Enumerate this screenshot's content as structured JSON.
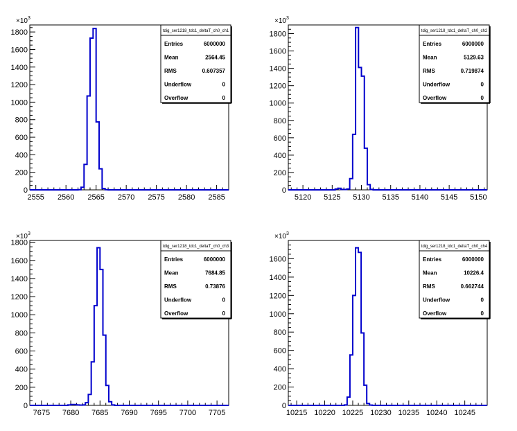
{
  "chart_data": [
    {
      "type": "histogram",
      "stats": {
        "title": "tdig_ser1218_tdc1_deltaT_ch0_ch1",
        "rows": [
          {
            "label": "Entries",
            "value": "6000000"
          },
          {
            "label": "Mean",
            "value": "2564.45"
          },
          {
            "label": "RMS",
            "value": "0.607357"
          },
          {
            "label": "Underflow",
            "value": "0"
          },
          {
            "label": "Overflow",
            "value": "0"
          }
        ]
      },
      "exponent": "3",
      "xlim": [
        2554,
        2587
      ],
      "ylim": [
        0,
        1880
      ],
      "xticks": [
        2555,
        2560,
        2565,
        2570,
        2575,
        2580,
        2585
      ],
      "yticks": [
        0,
        200,
        400,
        600,
        800,
        1000,
        1200,
        1400,
        1600,
        1800
      ],
      "ytick_labels": [
        "0",
        "200",
        "400",
        "600",
        "800",
        "1000",
        "1200",
        "1400",
        "1600",
        "1800"
      ],
      "bins": [
        {
          "x0": 2562.0,
          "x1": 2562.5,
          "y": 2
        },
        {
          "x0": 2562.5,
          "x1": 2563.0,
          "y": 30
        },
        {
          "x0": 2563.0,
          "x1": 2563.5,
          "y": 290
        },
        {
          "x0": 2563.5,
          "x1": 2564.0,
          "y": 1070
        },
        {
          "x0": 2564.0,
          "x1": 2564.5,
          "y": 1730
        },
        {
          "x0": 2564.5,
          "x1": 2565.0,
          "y": 1840
        },
        {
          "x0": 2565.0,
          "x1": 2565.5,
          "y": 775
        },
        {
          "x0": 2565.5,
          "x1": 2566.0,
          "y": 240
        },
        {
          "x0": 2566.0,
          "x1": 2566.5,
          "y": 15
        },
        {
          "x0": 2566.5,
          "x1": 2567.0,
          "y": 2
        }
      ]
    },
    {
      "type": "histogram",
      "stats": {
        "title": "tdig_ser1218_tdc1_deltaT_ch0_ch2",
        "rows": [
          {
            "label": "Entries",
            "value": "6000000"
          },
          {
            "label": "Mean",
            "value": "5129.63"
          },
          {
            "label": "RMS",
            "value": "0.719874"
          },
          {
            "label": "Underflow",
            "value": "0"
          },
          {
            "label": "Overflow",
            "value": "0"
          }
        ]
      },
      "exponent": "3",
      "xlim": [
        5117.5,
        5151.5
      ],
      "ylim": [
        0,
        1900
      ],
      "xticks": [
        5120,
        5125,
        5130,
        5135,
        5140,
        5145,
        5150
      ],
      "yticks": [
        0,
        200,
        400,
        600,
        800,
        1000,
        1200,
        1400,
        1600,
        1800
      ],
      "ytick_labels": [
        "0",
        "200",
        "400",
        "600",
        "800",
        "1000",
        "1200",
        "1400",
        "1600",
        "1800"
      ],
      "bins": [
        {
          "x0": 5125.5,
          "x1": 5126.0,
          "y": 10
        },
        {
          "x0": 5126.0,
          "x1": 5126.5,
          "y": 18
        },
        {
          "x0": 5126.5,
          "x1": 5127.0,
          "y": 5
        },
        {
          "x0": 5127.0,
          "x1": 5127.5,
          "y": 4
        },
        {
          "x0": 5127.5,
          "x1": 5128.0,
          "y": 10
        },
        {
          "x0": 5128.0,
          "x1": 5128.5,
          "y": 130
        },
        {
          "x0": 5128.5,
          "x1": 5129.0,
          "y": 640
        },
        {
          "x0": 5129.0,
          "x1": 5129.5,
          "y": 1870
        },
        {
          "x0": 5129.5,
          "x1": 5130.0,
          "y": 1410
        },
        {
          "x0": 5130.0,
          "x1": 5130.5,
          "y": 1310
        },
        {
          "x0": 5130.5,
          "x1": 5131.0,
          "y": 480
        },
        {
          "x0": 5131.0,
          "x1": 5131.5,
          "y": 60
        },
        {
          "x0": 5131.5,
          "x1": 5132.0,
          "y": 5
        }
      ]
    },
    {
      "type": "histogram",
      "stats": {
        "title": "tdig_ser1218_tdc1_deltaT_ch0_ch3",
        "rows": [
          {
            "label": "Entries",
            "value": "6000000"
          },
          {
            "label": "Mean",
            "value": "7684.85"
          },
          {
            "label": "RMS",
            "value": "0.73876"
          },
          {
            "label": "Underflow",
            "value": "0"
          },
          {
            "label": "Overflow",
            "value": "0"
          }
        ]
      },
      "exponent": "3",
      "xlim": [
        7673,
        7707
      ],
      "ylim": [
        0,
        1820
      ],
      "xticks": [
        7675,
        7680,
        7685,
        7690,
        7695,
        7700,
        7705
      ],
      "yticks": [
        0,
        200,
        400,
        600,
        800,
        1000,
        1200,
        1400,
        1600,
        1800
      ],
      "ytick_labels": [
        "0",
        "200",
        "400",
        "600",
        "800",
        "1000",
        "1200",
        "1400",
        "1600",
        "1800"
      ],
      "bins": [
        {
          "x0": 7679.5,
          "x1": 7680.0,
          "y": 5
        },
        {
          "x0": 7680.0,
          "x1": 7680.5,
          "y": 10
        },
        {
          "x0": 7680.5,
          "x1": 7681.0,
          "y": 10
        },
        {
          "x0": 7681.0,
          "x1": 7681.5,
          "y": 5
        },
        {
          "x0": 7681.5,
          "x1": 7682.0,
          "y": 3
        },
        {
          "x0": 7682.0,
          "x1": 7682.5,
          "y": 5
        },
        {
          "x0": 7682.5,
          "x1": 7683.0,
          "y": 30
        },
        {
          "x0": 7683.0,
          "x1": 7683.5,
          "y": 120
        },
        {
          "x0": 7683.5,
          "x1": 7684.0,
          "y": 480
        },
        {
          "x0": 7684.0,
          "x1": 7684.5,
          "y": 1100
        },
        {
          "x0": 7684.5,
          "x1": 7685.0,
          "y": 1740
        },
        {
          "x0": 7685.0,
          "x1": 7685.5,
          "y": 1500
        },
        {
          "x0": 7685.5,
          "x1": 7686.0,
          "y": 775
        },
        {
          "x0": 7686.0,
          "x1": 7686.5,
          "y": 220
        },
        {
          "x0": 7686.5,
          "x1": 7687.0,
          "y": 40
        },
        {
          "x0": 7687.0,
          "x1": 7687.5,
          "y": 5
        }
      ]
    },
    {
      "type": "histogram",
      "stats": {
        "title": "tdig_ser1218_tdc1_deltaT_ch0_ch4",
        "rows": [
          {
            "label": "Entries",
            "value": "6000000"
          },
          {
            "label": "Mean",
            "value": "10226.4"
          },
          {
            "label": "RMS",
            "value": "0.662744"
          },
          {
            "label": "Underflow",
            "value": "0"
          },
          {
            "label": "Overflow",
            "value": "0"
          }
        ]
      },
      "exponent": "3",
      "xlim": [
        10213.5,
        10249
      ],
      "ylim": [
        0,
        1800
      ],
      "xticks": [
        10215,
        10220,
        10225,
        10230,
        10235,
        10240,
        10245
      ],
      "yticks": [
        0,
        200,
        400,
        600,
        800,
        1000,
        1200,
        1400,
        1600
      ],
      "ytick_labels": [
        "0",
        "200",
        "400",
        "600",
        "800",
        "1000",
        "1200",
        "1400",
        "1600"
      ],
      "bins": [
        {
          "x0": 10223.5,
          "x1": 10224.0,
          "y": 5
        },
        {
          "x0": 10224.0,
          "x1": 10224.5,
          "y": 90
        },
        {
          "x0": 10224.5,
          "x1": 10225.0,
          "y": 550
        },
        {
          "x0": 10225.0,
          "x1": 10225.5,
          "y": 1200
        },
        {
          "x0": 10225.5,
          "x1": 10226.0,
          "y": 1720
        },
        {
          "x0": 10226.0,
          "x1": 10226.5,
          "y": 1670
        },
        {
          "x0": 10226.5,
          "x1": 10227.0,
          "y": 790
        },
        {
          "x0": 10227.0,
          "x1": 10227.5,
          "y": 220
        },
        {
          "x0": 10227.5,
          "x1": 10228.0,
          "y": 20
        },
        {
          "x0": 10228.0,
          "x1": 10228.5,
          "y": 3
        }
      ]
    }
  ],
  "colors": {
    "histogram_line": "#0000cc",
    "axis": "#000000",
    "background": "#ffffff"
  }
}
